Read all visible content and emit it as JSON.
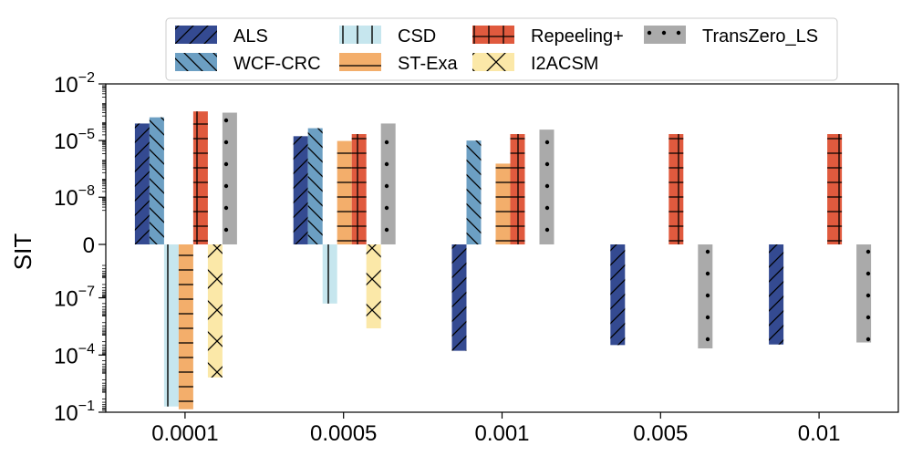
{
  "chart_data": {
    "type": "bar",
    "ylabel": "SIT",
    "xlabel": "",
    "categories": [
      "0.0001",
      "0.0005",
      "0.001",
      "0.005",
      "0.01"
    ],
    "y_scale": "symlog",
    "y_ticks": [
      {
        "value": 0.01,
        "base": "10",
        "exp": "−2"
      },
      {
        "value": 1e-05,
        "base": "10",
        "exp": "−5"
      },
      {
        "value": 1e-08,
        "base": "10",
        "exp": "−8"
      },
      {
        "value": 0,
        "base": "0",
        "exp": ""
      },
      {
        "value": -1e-07,
        "base": "10",
        "exp": "−7"
      },
      {
        "value": -0.0001,
        "base": "10",
        "exp": "−4"
      },
      {
        "value": -0.1,
        "base": "10",
        "exp": "−1"
      }
    ],
    "legend_position": "top-center",
    "series": [
      {
        "name": "ALS",
        "color": "#344a91",
        "hatch": "diag",
        "values": [
          8e-05,
          1.7e-05,
          -6e-05,
          -3e-05,
          -2.8e-05
        ]
      },
      {
        "name": "WCF-CRC",
        "color": "#6c9fc3",
        "hatch": "back",
        "values": [
          0.00017,
          4.5e-05,
          1e-05,
          0,
          0
        ]
      },
      {
        "name": "CSD",
        "color": "#c6e6ee",
        "hatch": "vert",
        "values": [
          0,
          0,
          0,
          0,
          0
        ],
        "neg_values": [
          -0.05,
          -2e-07,
          0,
          0,
          0
        ]
      },
      {
        "name": "ST-Exa",
        "color": "#f3ae6b",
        "hatch": "horiz",
        "values": [
          0,
          9.5e-06,
          6e-07,
          0,
          0
        ],
        "neg_values": [
          -0.07,
          0,
          0,
          0,
          0
        ]
      },
      {
        "name": "Repeeling+",
        "color": "#e05a3e",
        "hatch": "grid",
        "values": [
          0.00035,
          2.2e-05,
          2.2e-05,
          2.2e-05,
          2.2e-05
        ]
      },
      {
        "name": "I2ACSM",
        "color": "#fbe8a8",
        "hatch": "cross",
        "values": [
          0,
          0,
          0,
          0,
          0
        ],
        "neg_values": [
          -0.0015,
          -4e-06,
          0,
          0,
          0
        ]
      },
      {
        "name": "TransZero_LS",
        "color": "#aaaaaa",
        "hatch": "dots",
        "values": [
          0.0003,
          8e-05,
          3.8e-05,
          -4.5e-05,
          -2.2e-05
        ]
      }
    ]
  }
}
